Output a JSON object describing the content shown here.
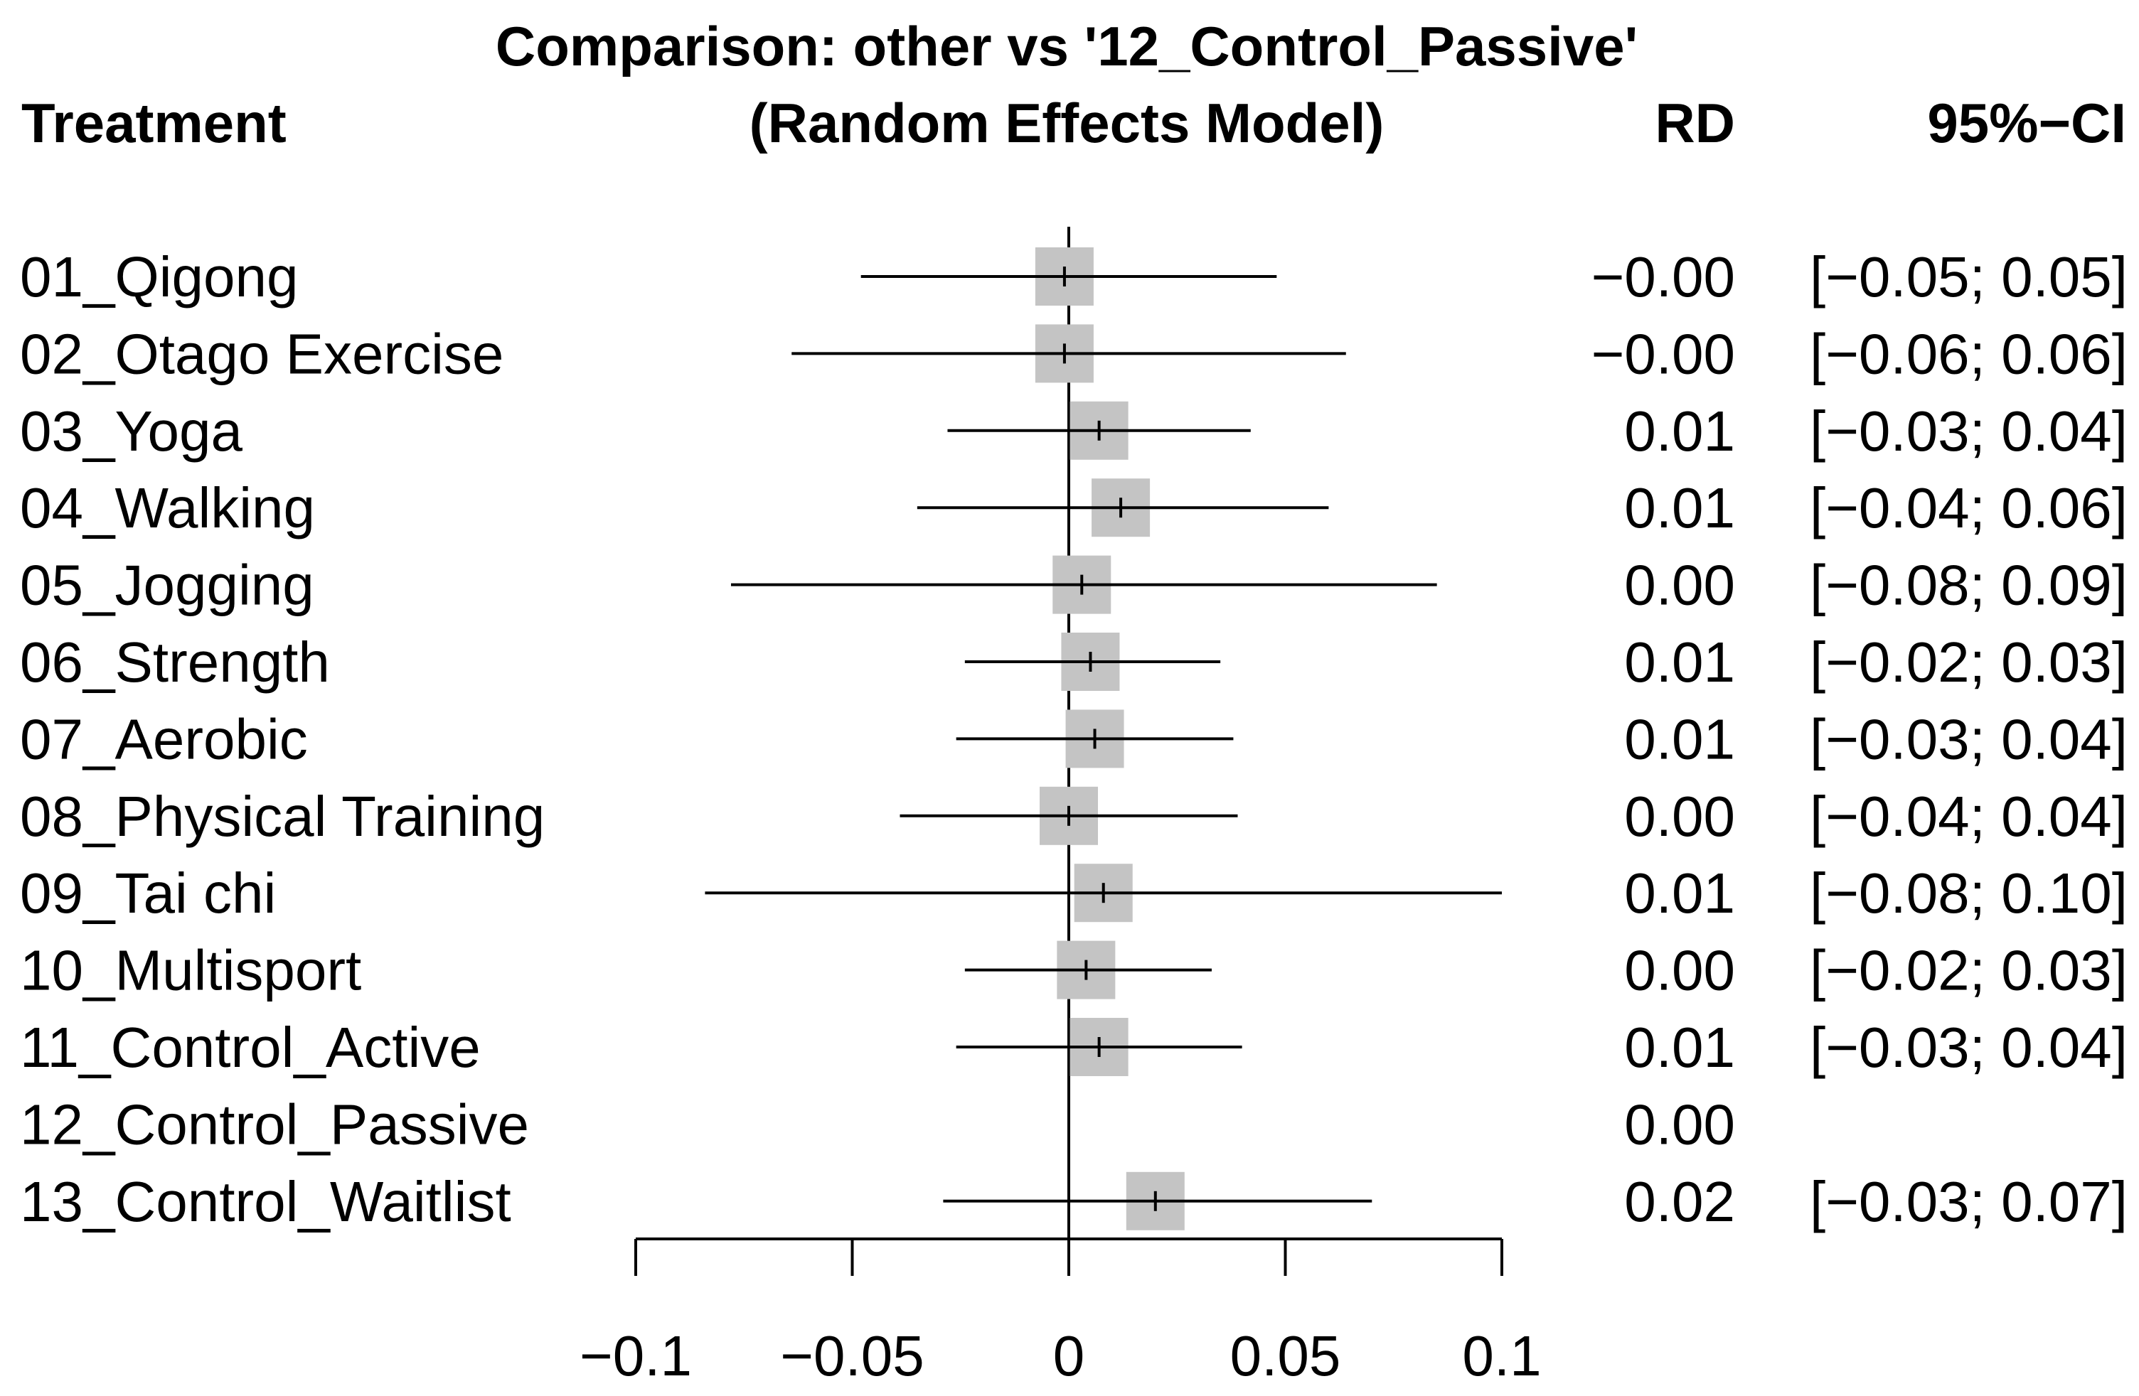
{
  "chart_data": {
    "type": "forest",
    "title_line1": "Comparison: other vs '12_Control_Passive'",
    "title_line2": "(Random Effects Model)",
    "columns": {
      "treatment": "Treatment",
      "estimate": "RD",
      "ci": "95%−CI"
    },
    "rows": [
      {
        "label": "01_Qigong",
        "rd": -0.001,
        "lo": -0.048,
        "hi": 0.048,
        "rd_text": "−0.00",
        "ci_text": "[−0.05; 0.05]"
      },
      {
        "label": "02_Otago Exercise",
        "rd": -0.001,
        "lo": -0.064,
        "hi": 0.064,
        "rd_text": "−0.00",
        "ci_text": "[−0.06; 0.06]"
      },
      {
        "label": "03_Yoga",
        "rd": 0.007,
        "lo": -0.028,
        "hi": 0.042,
        "rd_text": "0.01",
        "ci_text": "[−0.03; 0.04]"
      },
      {
        "label": "04_Walking",
        "rd": 0.012,
        "lo": -0.035,
        "hi": 0.06,
        "rd_text": "0.01",
        "ci_text": "[−0.04; 0.06]"
      },
      {
        "label": "05_Jogging",
        "rd": 0.003,
        "lo": -0.078,
        "hi": 0.085,
        "rd_text": "0.00",
        "ci_text": "[−0.08; 0.09]"
      },
      {
        "label": "06_Strength",
        "rd": 0.005,
        "lo": -0.024,
        "hi": 0.035,
        "rd_text": "0.01",
        "ci_text": "[−0.02; 0.03]"
      },
      {
        "label": "07_Aerobic",
        "rd": 0.006,
        "lo": -0.026,
        "hi": 0.038,
        "rd_text": "0.01",
        "ci_text": "[−0.03; 0.04]"
      },
      {
        "label": "08_Physical Training",
        "rd": 0.0,
        "lo": -0.039,
        "hi": 0.039,
        "rd_text": "0.00",
        "ci_text": "[−0.04; 0.04]"
      },
      {
        "label": "09_Tai  chi",
        "rd": 0.008,
        "lo": -0.084,
        "hi": 0.1,
        "rd_text": "0.01",
        "ci_text": "[−0.08; 0.10]"
      },
      {
        "label": "10_Multisport",
        "rd": 0.004,
        "lo": -0.024,
        "hi": 0.033,
        "rd_text": "0.00",
        "ci_text": "[−0.02; 0.03]"
      },
      {
        "label": "11_Control_Active",
        "rd": 0.007,
        "lo": -0.026,
        "hi": 0.04,
        "rd_text": "0.01",
        "ci_text": "[−0.03; 0.04]"
      },
      {
        "label": "12_Control_Passive",
        "rd": 0.0,
        "lo": null,
        "hi": null,
        "rd_text": "0.00",
        "ci_text": ""
      },
      {
        "label": "13_Control_Waitlist",
        "rd": 0.02,
        "lo": -0.029,
        "hi": 0.07,
        "rd_text": "0.02",
        "ci_text": "[−0.03; 0.07]"
      }
    ],
    "xlim": [
      -0.1,
      0.1
    ],
    "x_ticks": [
      -0.1,
      -0.05,
      0,
      0.05,
      0.1
    ],
    "x_tick_labels": [
      "−0.1",
      "−0.05",
      "0",
      "0.05",
      "0.1"
    ],
    "reference_line": 0,
    "colors": {
      "square": "#c4c4c4",
      "lines": "#000000"
    }
  }
}
